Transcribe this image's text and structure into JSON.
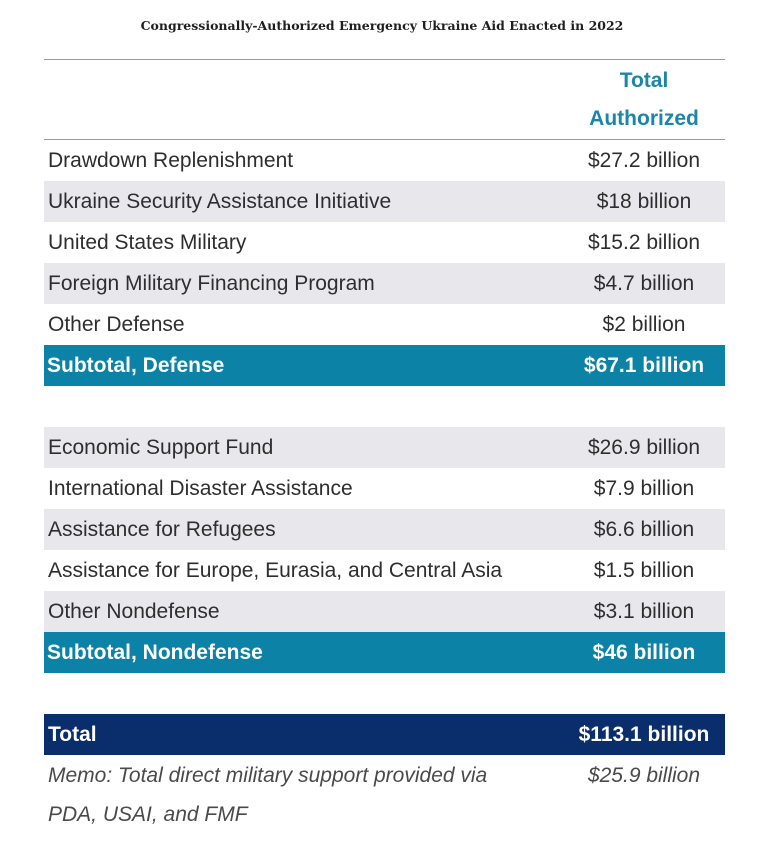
{
  "chart_data": {
    "type": "table",
    "title": "Congressionally-Authorized Emergency Ukraine Aid Enacted in 2022",
    "column_header": [
      "Total",
      "Authorized"
    ],
    "defense_rows": [
      {
        "label": "Drawdown Replenishment",
        "value": "$27.2 billion",
        "amount_billion": 27.2
      },
      {
        "label": "Ukraine Security Assistance Initiative",
        "value": "$18 billion",
        "amount_billion": 18
      },
      {
        "label": "United States Military",
        "value": "$15.2 billion",
        "amount_billion": 15.2
      },
      {
        "label": "Foreign Military Financing Program",
        "value": "$4.7 billion",
        "amount_billion": 4.7
      },
      {
        "label": "Other Defense",
        "value": "$2 billion",
        "amount_billion": 2
      }
    ],
    "defense_subtotal": {
      "label": "Subtotal, Defense",
      "value": "$67.1 billion",
      "amount_billion": 67.1
    },
    "nondefense_rows": [
      {
        "label": "Economic Support Fund",
        "value": "$26.9 billion",
        "amount_billion": 26.9
      },
      {
        "label": "International Disaster Assistance",
        "value": "$7.9 billion",
        "amount_billion": 7.9
      },
      {
        "label": "Assistance for Refugees",
        "value": "$6.6 billion",
        "amount_billion": 6.6
      },
      {
        "label": "Assistance for Europe, Eurasia, and Central Asia",
        "value": "$1.5 billion",
        "amount_billion": 1.5
      },
      {
        "label": "Other Nondefense",
        "value": "$3.1 billion",
        "amount_billion": 3.1
      }
    ],
    "nondefense_subtotal": {
      "label": "Subtotal, Nondefense",
      "value": "$46 billion",
      "amount_billion": 46
    },
    "total": {
      "label": "Total",
      "value": "$113.1 billion",
      "amount_billion": 113.1
    },
    "memo": {
      "label_lines": [
        "Memo: Total direct military support provided via",
        "PDA, USAI, and FMF"
      ],
      "value": "$25.9 billion",
      "amount_billion": 25.9
    }
  },
  "colors": {
    "header_text": "#1a86a8",
    "subtotal_bg": "#0b82a6",
    "total_bg": "#0a2d6b",
    "shade_bg": "#e8e8ec"
  }
}
